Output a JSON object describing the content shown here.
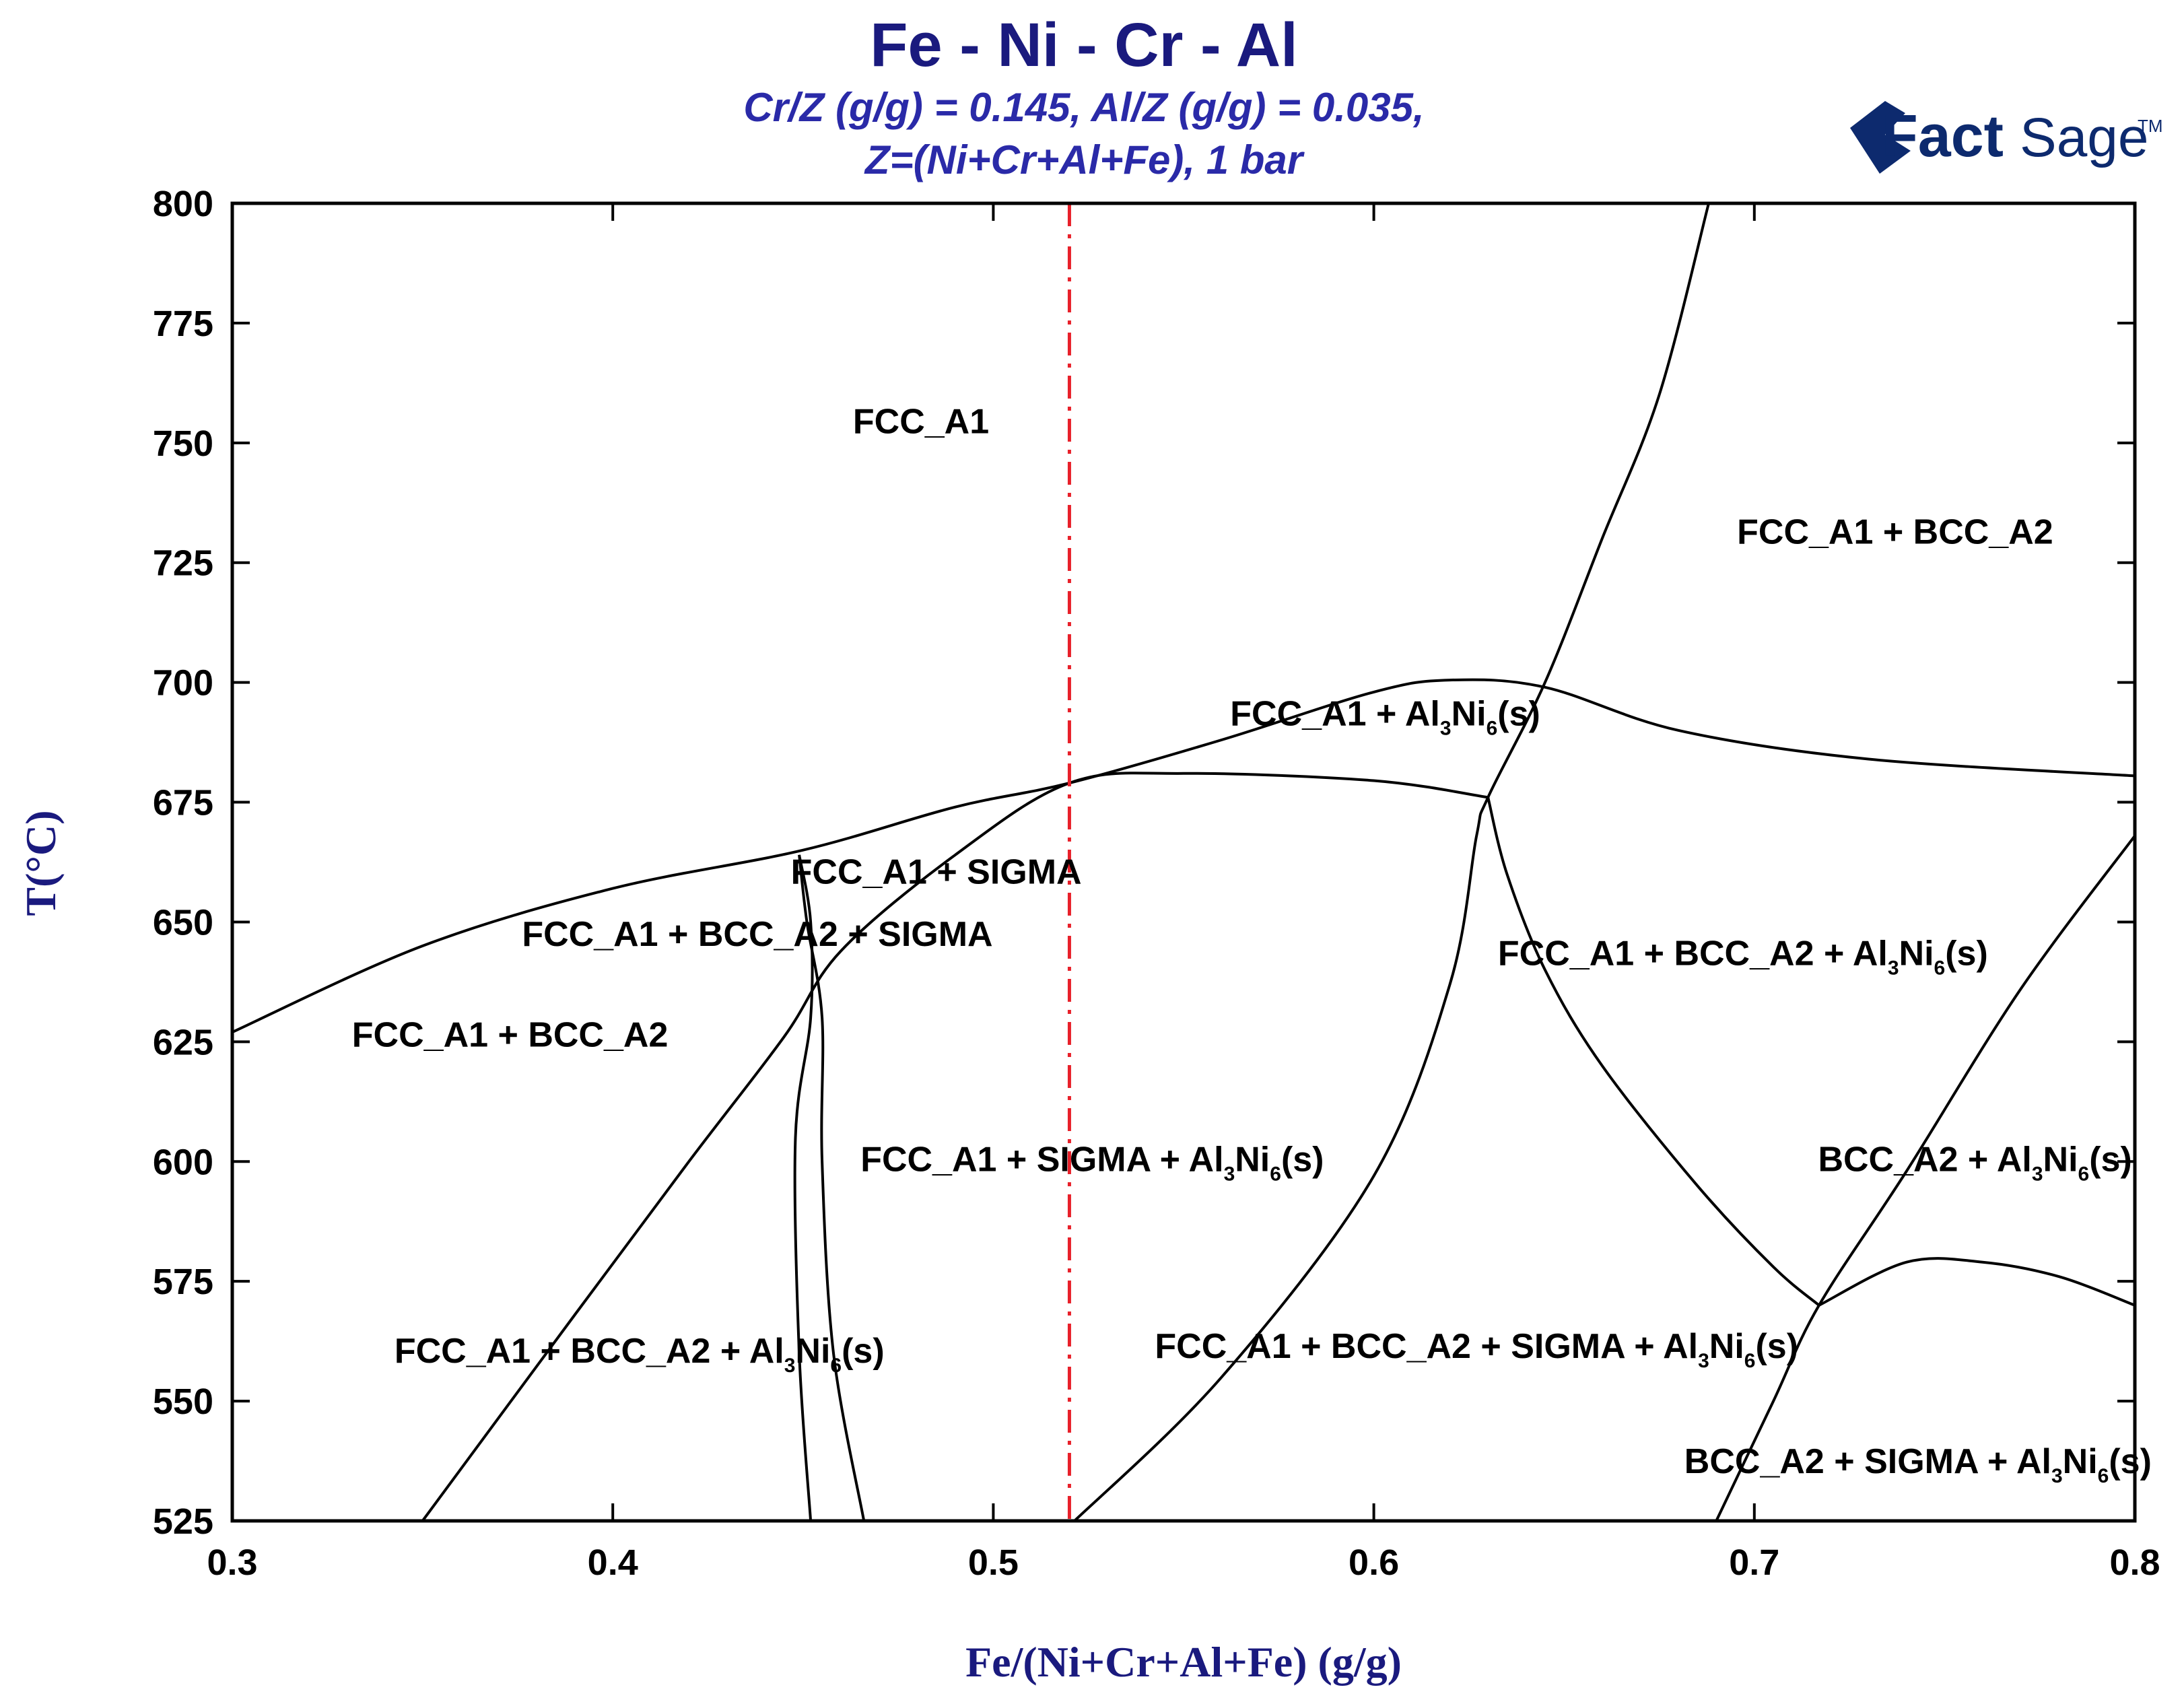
{
  "chart_data": {
    "type": "line",
    "title": "Fe - Ni - Cr - Al",
    "subtitle_lines": [
      "Cr/Z (g/g)  = 0.145,  Al/Z (g/g)  = 0.035,",
      "Z=(Ni+Cr+Al+Fe), 1 bar"
    ],
    "logo": {
      "text_bold": "Fact",
      "text_light": "Sage",
      "mark": "TM"
    },
    "xlabel": "Fe/(Ni+Cr+Al+Fe) (g/g)",
    "ylabel": "T(°C)",
    "xlim": [
      0.3,
      0.8
    ],
    "ylim": [
      525,
      800
    ],
    "xticks": [
      0.3,
      0.4,
      0.5,
      0.6,
      0.7,
      0.8
    ],
    "xtick_labels": [
      "0.3",
      "0.4",
      "0.5",
      "0.6",
      "0.7",
      "0.8"
    ],
    "yticks": [
      525,
      550,
      575,
      600,
      625,
      650,
      675,
      700,
      725,
      750,
      775,
      800
    ],
    "ytick_labels": [
      "525",
      "550",
      "575",
      "600",
      "625",
      "650",
      "675",
      "700",
      "725",
      "750",
      "775",
      "800"
    ],
    "grid": false,
    "reference_line": {
      "x": 0.52,
      "color": "#e8202a",
      "style": "dash-dot"
    },
    "boundaries": [
      {
        "points": [
          [
            0.3,
            627
          ],
          [
            0.35,
            645
          ],
          [
            0.4,
            657
          ],
          [
            0.45,
            665
          ],
          [
            0.49,
            674
          ],
          [
            0.52,
            679
          ],
          [
            0.56,
            688
          ],
          [
            0.6,
            698
          ],
          [
            0.62,
            700.5
          ],
          [
            0.645,
            699
          ],
          [
            0.68,
            690
          ],
          [
            0.73,
            684
          ],
          [
            0.8,
            680.5
          ]
        ]
      },
      {
        "points": [
          [
            0.35,
            525
          ],
          [
            0.39,
            568
          ],
          [
            0.42,
            600
          ],
          [
            0.445,
            626
          ],
          [
            0.46,
            644
          ],
          [
            0.49,
            664
          ],
          [
            0.52,
            679
          ],
          [
            0.55,
            681
          ],
          [
            0.6,
            679.5
          ],
          [
            0.63,
            676
          ]
        ]
      },
      {
        "points": [
          [
            0.52,
            524
          ],
          [
            0.56,
            555
          ],
          [
            0.6,
            597
          ],
          [
            0.62,
            637
          ],
          [
            0.627,
            668
          ],
          [
            0.63,
            676
          ],
          [
            0.645,
            700
          ],
          [
            0.66,
            730
          ],
          [
            0.675,
            760
          ],
          [
            0.688,
            800
          ]
        ]
      },
      {
        "points": [
          [
            0.63,
            676
          ],
          [
            0.635,
            660
          ],
          [
            0.645,
            640
          ],
          [
            0.66,
            620
          ],
          [
            0.685,
            595
          ],
          [
            0.705,
            578
          ],
          [
            0.717,
            570
          ]
        ]
      },
      {
        "points": [
          [
            0.717,
            570
          ],
          [
            0.74,
            579
          ],
          [
            0.76,
            579
          ],
          [
            0.78,
            576
          ],
          [
            0.8,
            570
          ]
        ]
      },
      {
        "points": [
          [
            0.69,
            525
          ],
          [
            0.705,
            550
          ],
          [
            0.717,
            570
          ],
          [
            0.74,
            598
          ],
          [
            0.77,
            636
          ],
          [
            0.8,
            668
          ]
        ]
      },
      {
        "points": [
          [
            0.449,
            664
          ],
          [
            0.452,
            650
          ],
          [
            0.452,
            630
          ],
          [
            0.448,
            605
          ],
          [
            0.449,
            560
          ],
          [
            0.452,
            525
          ]
        ]
      },
      {
        "points": [
          [
            0.449,
            664
          ],
          [
            0.451,
            650
          ],
          [
            0.455,
            630
          ],
          [
            0.455,
            600
          ],
          [
            0.458,
            560
          ],
          [
            0.466,
            525
          ]
        ]
      }
    ],
    "region_labels": [
      {
        "text": "FCC_A1",
        "x": 0.481,
        "y": 752
      },
      {
        "text": "FCC_A1 + BCC_A2",
        "x": 0.737,
        "y": 729
      },
      {
        "text": "FCC_A1 + Al3Ni6(s)",
        "x": 0.603,
        "y": 691,
        "sub1": "3",
        "sub2": "6",
        "parts": [
          "FCC_A1 + Al",
          "Ni",
          "(s)"
        ]
      },
      {
        "text": "FCC_A1 + SIGMA",
        "x": 0.485,
        "y": 658
      },
      {
        "text": "FCC_A1 + BCC_A2 + SIGMA",
        "x": 0.438,
        "y": 645
      },
      {
        "text": "FCC_A1 + BCC_A2 + Al3Ni6(s)",
        "x": 0.697,
        "y": 641,
        "parts": [
          "FCC_A1 + BCC_A2 + Al",
          "Ni",
          "(s)"
        ]
      },
      {
        "text": "FCC_A1 + BCC_A2",
        "x": 0.373,
        "y": 624
      },
      {
        "text": "FCC_A1 + SIGMA + Al3Ni6(s)",
        "x": 0.526,
        "y": 598,
        "parts": [
          "FCC_A1 + SIGMA + Al",
          "Ni",
          "(s)"
        ]
      },
      {
        "text": "BCC_A2 + Al3Ni6(s)",
        "x": 0.758,
        "y": 598,
        "parts": [
          "BCC_A2 + Al",
          "Ni",
          "(s)"
        ]
      },
      {
        "text": "FCC_A1 + BCC_A2 + Al3Ni6(s)",
        "x": 0.407,
        "y": 558,
        "parts": [
          "FCC_A1 + BCC_A2 + Al",
          "Ni",
          "(s)"
        ]
      },
      {
        "text": "FCC_A1 + BCC_A2 + SIGMA + Al3Ni6(s)",
        "x": 0.627,
        "y": 559,
        "parts": [
          "FCC_A1 + BCC_A2 + SIGMA + Al",
          "Ni",
          "(s)"
        ]
      },
      {
        "text": "BCC_A2 + SIGMA + Al3Ni6(s)",
        "x": 0.743,
        "y": 535,
        "parts": [
          "BCC_A2 + SIGMA + Al",
          "Ni",
          "(s)"
        ]
      }
    ]
  }
}
